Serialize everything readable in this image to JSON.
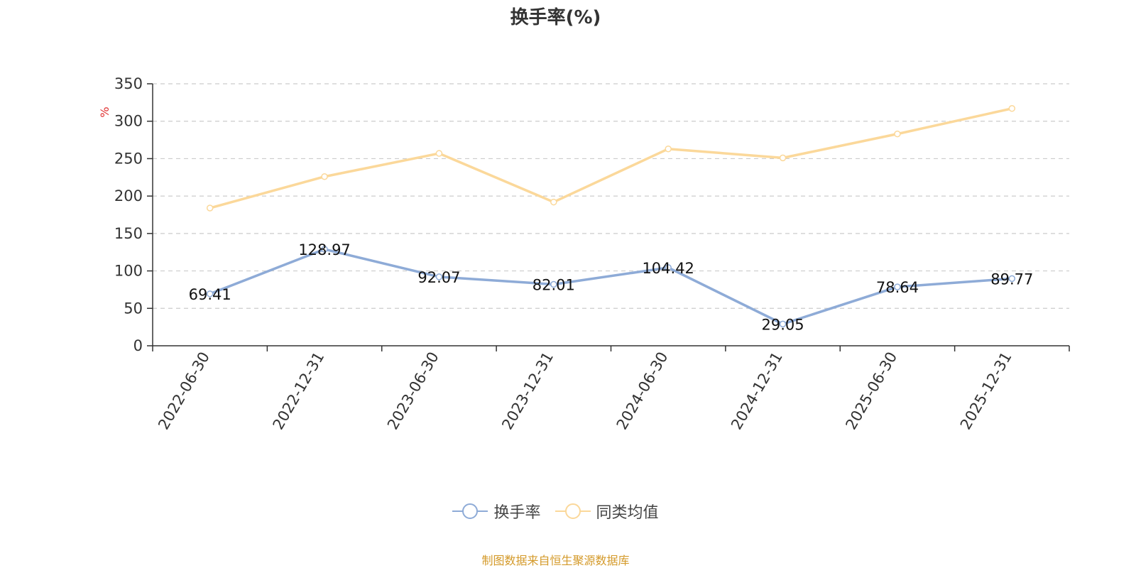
{
  "chart_data": {
    "type": "line",
    "title": "换手率(%)",
    "ylabel": "%",
    "ylim": [
      0,
      350
    ],
    "yticks": [
      0,
      50,
      100,
      150,
      200,
      250,
      300,
      350
    ],
    "categories": [
      "2022-06-30",
      "2022-12-31",
      "2023-06-30",
      "2023-12-31",
      "2024-06-30",
      "2024-12-31",
      "2025-06-30",
      "2025-12-31"
    ],
    "series": [
      {
        "name": "换手率",
        "color": "#8eabd7",
        "show_labels": true,
        "values": [
          69.41,
          128.97,
          92.07,
          82.01,
          104.42,
          29.05,
          78.64,
          89.77
        ]
      },
      {
        "name": "同类均值",
        "color": "#fbd89a",
        "show_labels": false,
        "values": [
          184,
          226,
          257,
          192,
          263,
          251,
          283,
          317
        ]
      }
    ],
    "grid": true,
    "legend_position": "bottom-center"
  },
  "source_note": "制图数据来自恒生聚源数据库"
}
